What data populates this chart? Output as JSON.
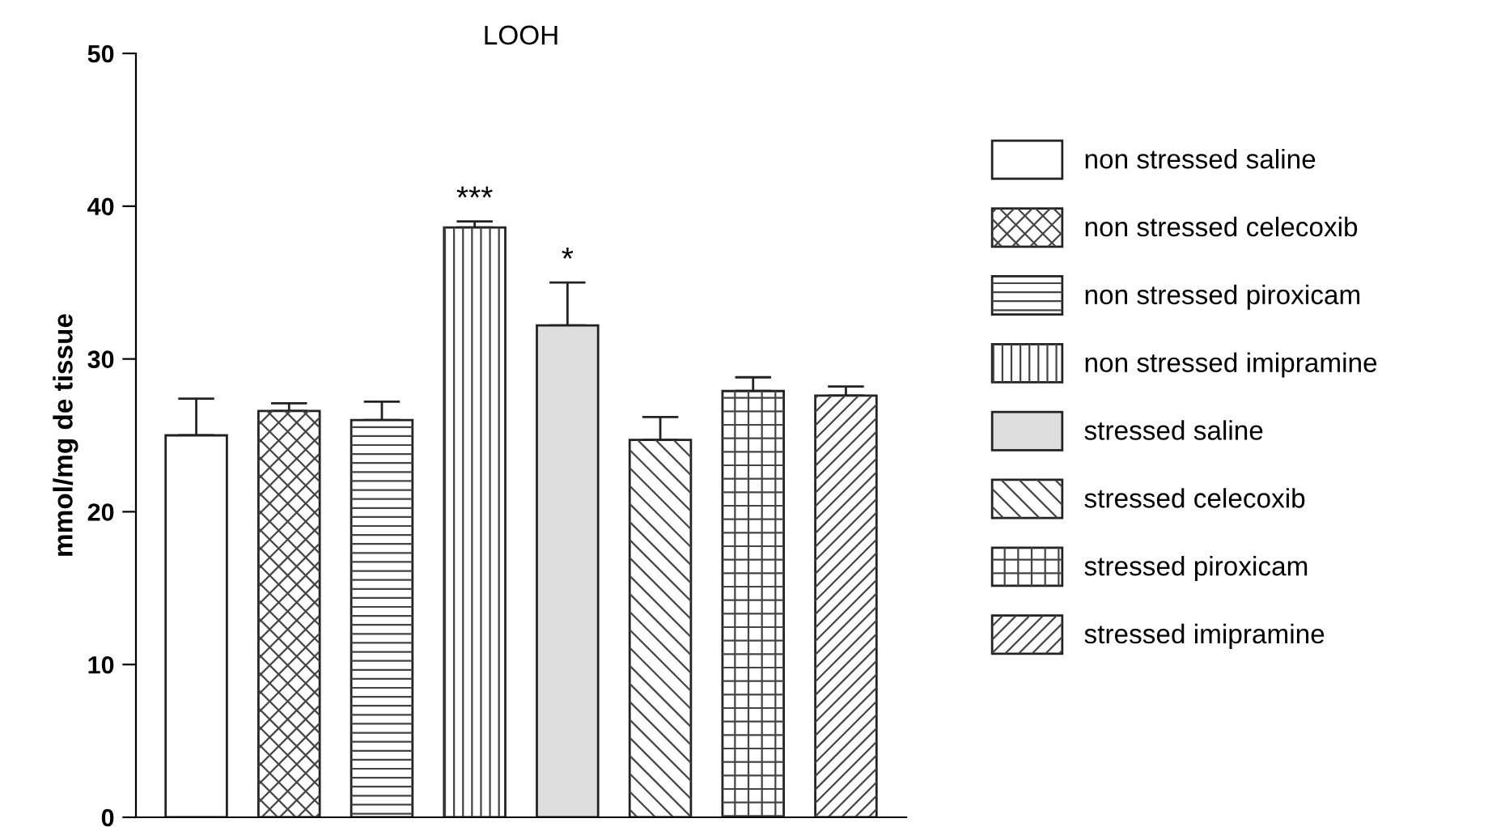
{
  "chart_data": {
    "type": "bar",
    "title": "LOOH",
    "ylabel": "mmol/mg de tissue",
    "categories": [
      null
    ],
    "series": [
      {
        "name": "non stressed saline",
        "color": "#ffffff",
        "values": [
          25.0
        ],
        "errors": [
          2.4
        ]
      },
      {
        "name": "non stressed celecoxib",
        "color": "#ffffff",
        "values": [
          26.6
        ],
        "errors": [
          0.5
        ]
      },
      {
        "name": "non stressed piroxicam",
        "color": "#ffffff",
        "values": [
          26.0
        ],
        "errors": [
          1.2
        ]
      },
      {
        "name": "non stressed imipramine",
        "color": "#ffffff",
        "values": [
          38.6
        ],
        "errors": [
          0.4
        ]
      },
      {
        "name": "stressed saline",
        "color": "#dddddd",
        "values": [
          32.2
        ],
        "errors": [
          2.8
        ]
      },
      {
        "name": "stressed celecoxib",
        "color": "#ffffff",
        "values": [
          24.7
        ],
        "errors": [
          1.5
        ]
      },
      {
        "name": "stressed piroxicam",
        "color": "#ffffff",
        "values": [
          27.9
        ],
        "errors": [
          0.9
        ]
      },
      {
        "name": "stressed imipramine",
        "color": "#ffffff",
        "values": [
          27.6
        ],
        "errors": [
          0.6
        ]
      }
    ],
    "annotations": [
      {
        "text": "***",
        "y": 39.0
      },
      {
        "text": "*",
        "y": 35.0
      }
    ],
    "ylim": [
      0,
      50
    ],
    "yticks": [
      0,
      10,
      20,
      30,
      40,
      50
    ],
    "grid": false,
    "legend": "right",
    "tick_labels": "y"
  }
}
